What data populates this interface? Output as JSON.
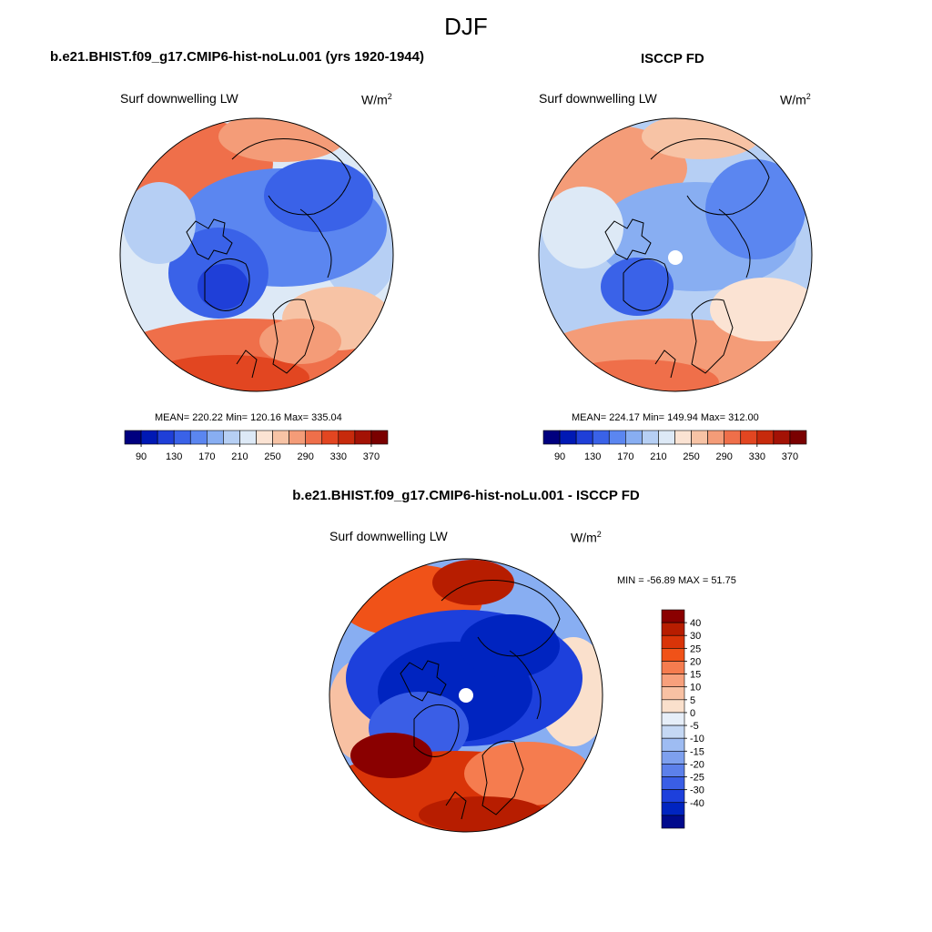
{
  "figure": {
    "season": "DJF"
  },
  "panels": {
    "model": {
      "title": "b.e21.BHIST.f09_g17.CMIP6-hist-noLu.001 (yrs 1920-1944)",
      "variable": "Surf downwelling LW",
      "units_base": "W/m",
      "units_exp": "2",
      "stats": "MEAN= 220.22  Min= 120.16  Max= 335.04"
    },
    "obs": {
      "title": "ISCCP FD",
      "variable": "Surf downwelling LW",
      "units_base": "W/m",
      "units_exp": "2",
      "stats": "MEAN= 224.17  Min= 149.94  Max= 312.00"
    },
    "diff": {
      "title": "b.e21.BHIST.f09_g17.CMIP6-hist-noLu.001 - ISCCP FD",
      "variable": "Surf downwelling LW",
      "units_base": "W/m",
      "units_exp": "2",
      "stats": "MIN = -56.89 MAX =  51.75"
    }
  },
  "colorbars": {
    "abs_colors": [
      "#00007f",
      "#0019b4",
      "#1f3fd8",
      "#3a62e8",
      "#5b86f0",
      "#88aef2",
      "#b6cff4",
      "#dde9f6",
      "#fbe3d3",
      "#f7c3a5",
      "#f49c78",
      "#ef6f4a",
      "#e24621",
      "#c72a0c",
      "#a31205",
      "#7a0000"
    ],
    "abs_ticks": [
      "90",
      "130",
      "170",
      "210",
      "250",
      "290",
      "330",
      "370"
    ],
    "diff_colors": [
      "#8a0000",
      "#b71d00",
      "#d93408",
      "#f05218",
      "#f57c4f",
      "#f7a07c",
      "#f8c1a3",
      "#fae0cc",
      "#e6eef8",
      "#c5d8f4",
      "#9ebcf2",
      "#7ea0ee",
      "#5c80ea",
      "#3a5ee6",
      "#1d40dc",
      "#0024c0",
      "#000a8c"
    ],
    "diff_ticks": [
      "40",
      "30",
      "25",
      "20",
      "15",
      "10",
      "5",
      "0",
      "-5",
      "-10",
      "-15",
      "-20",
      "-25",
      "-30",
      "-40"
    ]
  },
  "chart_data": [
    {
      "type": "heatmap",
      "title": "b.e21.BHIST.f09_g17.CMIP6-hist-noLu.001 (yrs 1920-1944)",
      "variable": "Surf downwelling LW",
      "units": "W/m2",
      "projection": "polar stereographic (north)",
      "mean": 220.22,
      "min": 120.16,
      "max": 335.04,
      "colorbar_ticks": [
        90,
        130,
        170,
        210,
        250,
        290,
        330,
        370
      ]
    },
    {
      "type": "heatmap",
      "title": "ISCCP FD",
      "variable": "Surf downwelling LW",
      "units": "W/m2",
      "projection": "polar stereographic (north)",
      "mean": 224.17,
      "min": 149.94,
      "max": 312.0,
      "colorbar_ticks": [
        90,
        130,
        170,
        210,
        250,
        290,
        330,
        370
      ]
    },
    {
      "type": "heatmap",
      "title": "b.e21.BHIST.f09_g17.CMIP6-hist-noLu.001 - ISCCP FD",
      "variable": "Surf downwelling LW",
      "units": "W/m2",
      "projection": "polar stereographic (north)",
      "min": -56.89,
      "max": 51.75,
      "colorbar_ticks": [
        40,
        30,
        25,
        20,
        15,
        10,
        5,
        0,
        -5,
        -10,
        -15,
        -20,
        -25,
        -30,
        -40
      ]
    }
  ]
}
